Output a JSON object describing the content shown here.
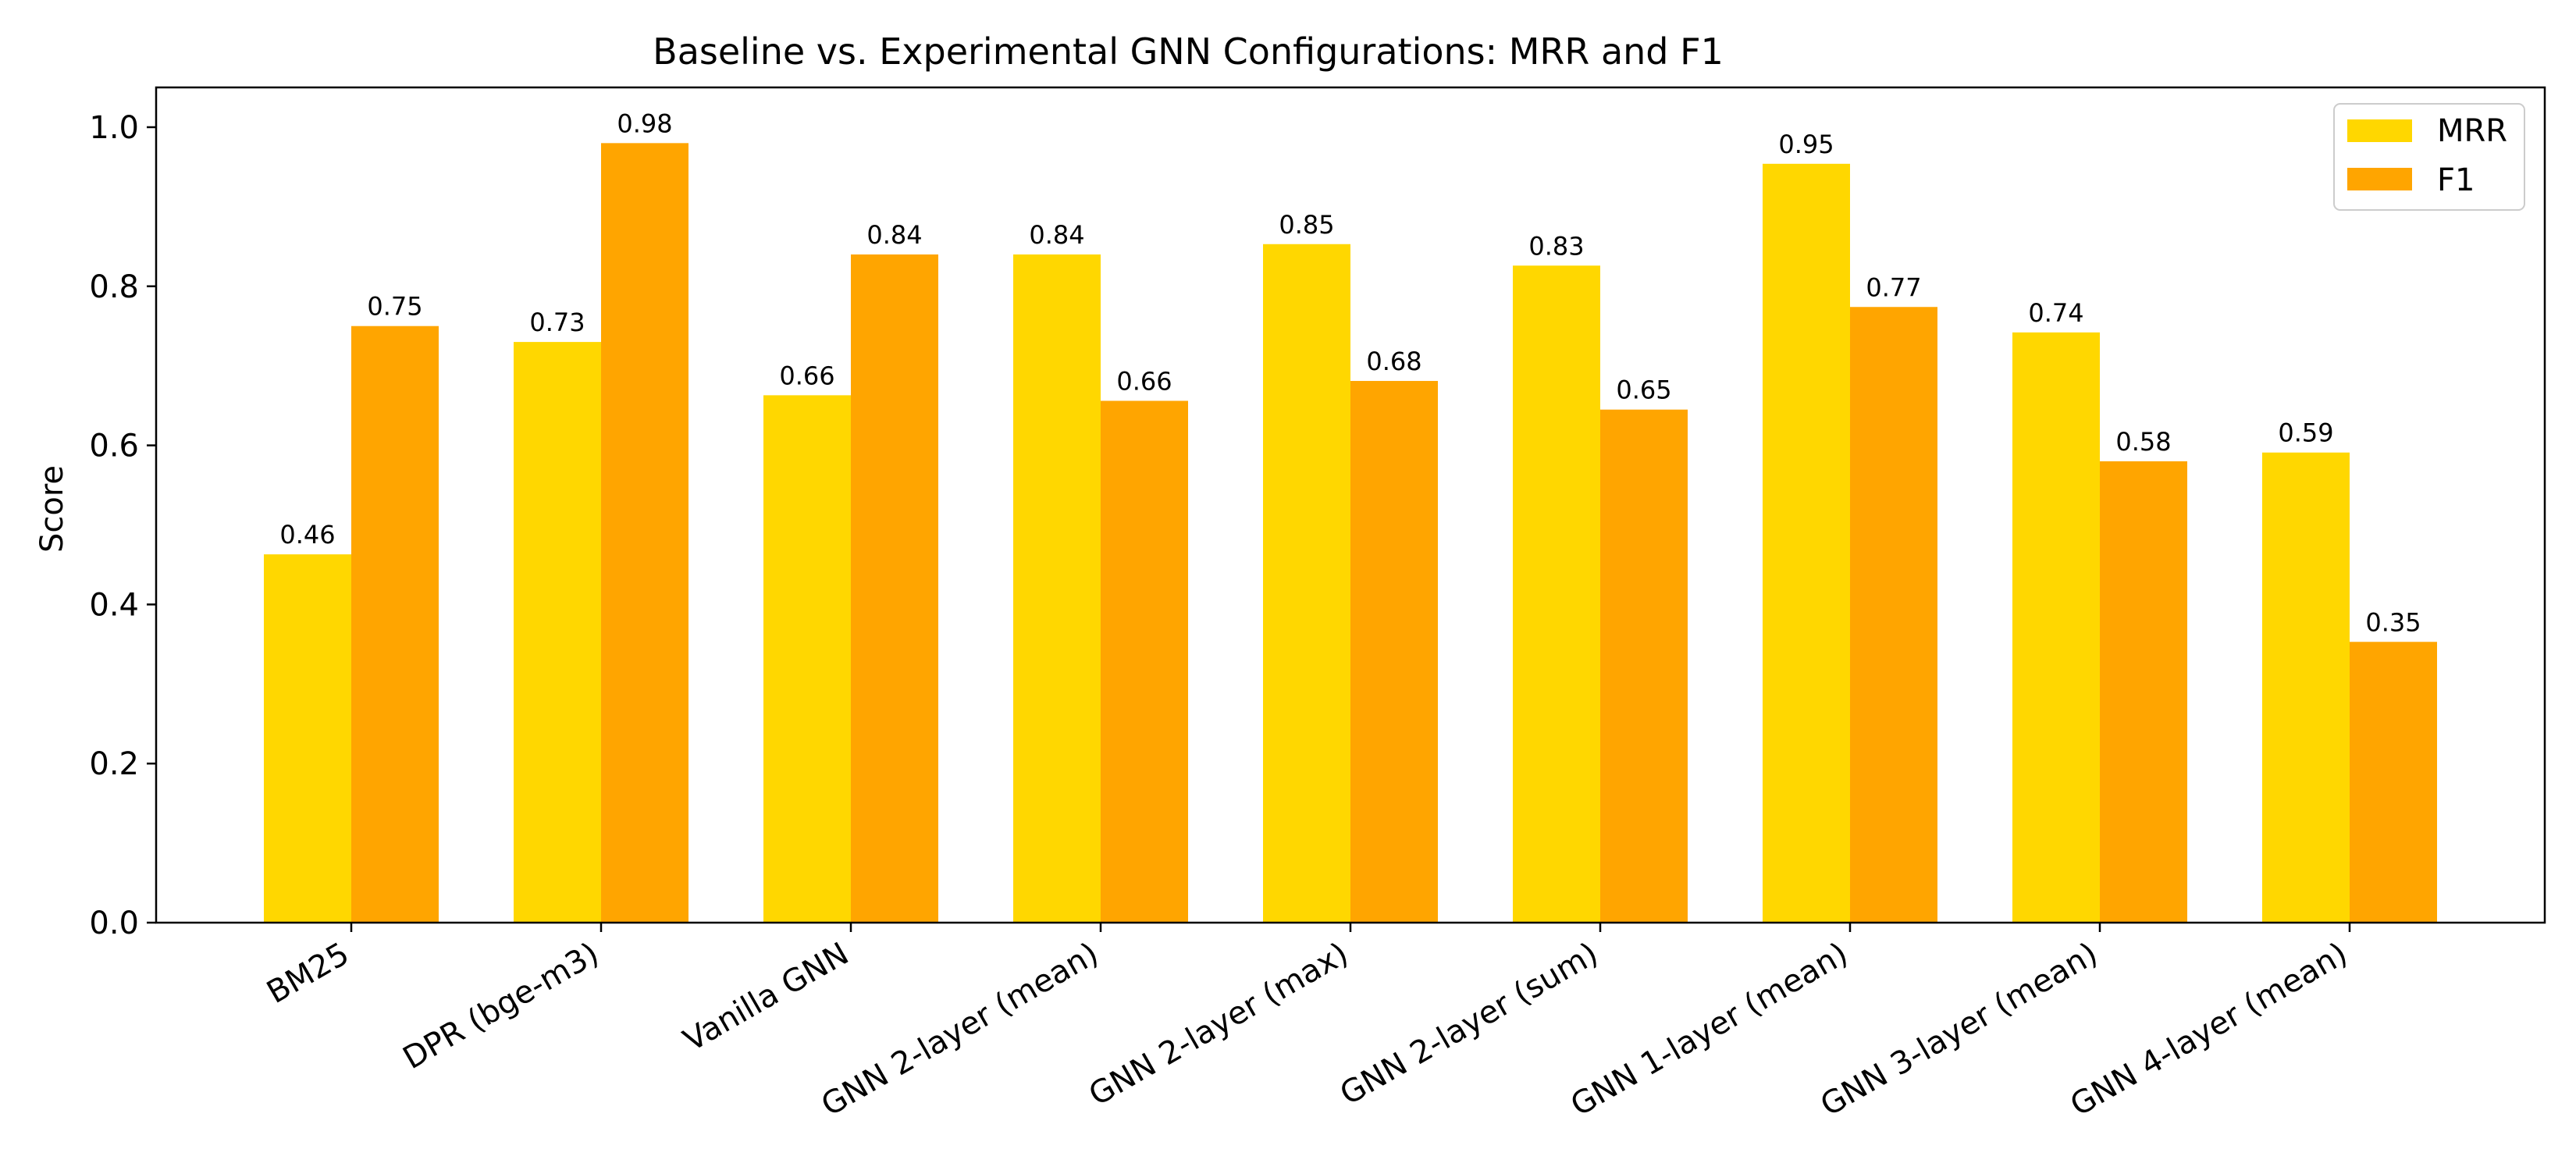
{
  "chart_data": {
    "type": "bar",
    "title": "Baseline vs. Experimental GNN Configurations: MRR and F1",
    "xlabel": "",
    "ylabel": "Score",
    "ylim": [
      0,
      1.05
    ],
    "yticks": [
      "0.0",
      "0.2",
      "0.4",
      "0.6",
      "0.8",
      "1.0"
    ],
    "categories": [
      "BM25",
      "DPR (bge-m3)",
      "Vanilla GNN",
      "GNN 2-layer (mean)",
      "GNN 2-layer (max)",
      "GNN 2-layer (sum)",
      "GNN 1-layer (mean)",
      "GNN 3-layer (mean)",
      "GNN 4-layer (mean)"
    ],
    "series": [
      {
        "name": "MRR",
        "color": "#FFD700",
        "values": [
          0.463,
          0.73,
          0.663,
          0.84,
          0.853,
          0.826,
          0.954,
          0.742,
          0.591
        ],
        "labels": [
          "0.46",
          "0.73",
          "0.66",
          "0.84",
          "0.85",
          "0.83",
          "0.95",
          "0.74",
          "0.59"
        ]
      },
      {
        "name": "F1",
        "color": "#FFA500",
        "values": [
          0.75,
          0.98,
          0.84,
          0.656,
          0.681,
          0.645,
          0.774,
          0.58,
          0.353
        ],
        "labels": [
          "0.75",
          "0.98",
          "0.84",
          "0.66",
          "0.68",
          "0.65",
          "0.77",
          "0.58",
          "0.35"
        ]
      }
    ],
    "grid": false,
    "legend_position": "top-right"
  }
}
